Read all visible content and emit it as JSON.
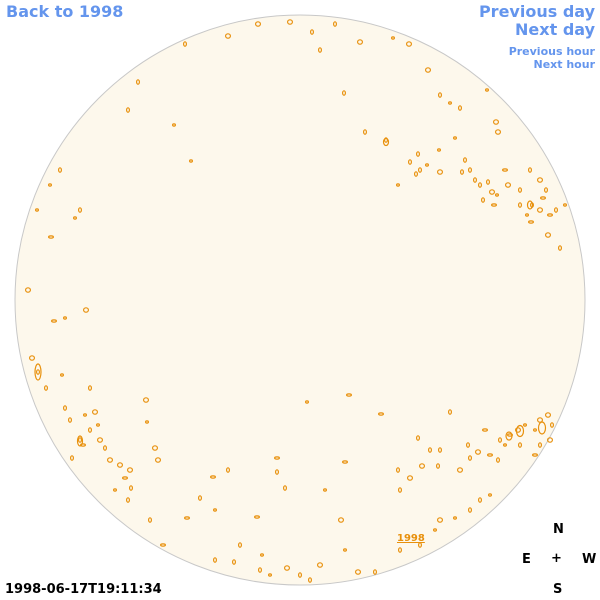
{
  "nav": {
    "back_label": "Back to 1998",
    "previous_day_label": "Previous day",
    "next_day_label": "Next day",
    "previous_hour_label": "Previous hour",
    "next_hour_label": "Next hour"
  },
  "compass": {
    "north": "N",
    "east": "E",
    "center": "+",
    "west": "W",
    "south": "S"
  },
  "timestamp": "1998-06-17T19:11:34",
  "year_link": "1998",
  "colors": {
    "link": "#6495ed",
    "disk_fill": "#fdf8ec",
    "disk_edge": "#c8c8c8",
    "contour": "#e8900b"
  }
}
